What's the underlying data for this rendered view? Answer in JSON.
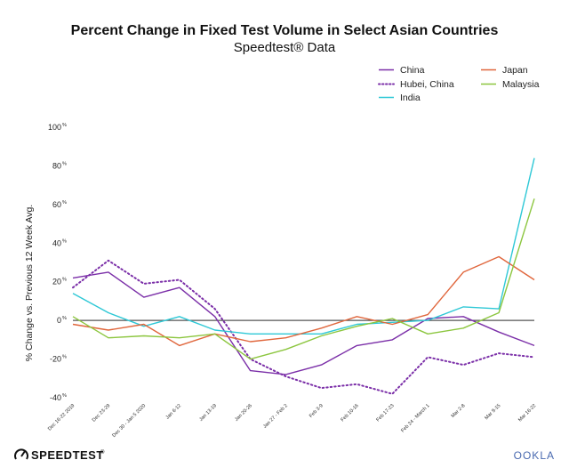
{
  "chart_data": {
    "type": "line",
    "title": "Percent Change in Fixed Test Volume in Select Asian Countries",
    "subtitle": "Speedtest® Data",
    "ylabel": "% Change vs. Previous 12 Week Avg.",
    "xlabel": "",
    "ylim": [
      -40,
      100
    ],
    "yticks": [
      {
        "value": 100,
        "label": "100",
        "unit": "%"
      },
      {
        "value": 80,
        "label": "80",
        "unit": "%"
      },
      {
        "value": 60,
        "label": "60",
        "unit": "%"
      },
      {
        "value": 40,
        "label": "40",
        "unit": "%"
      },
      {
        "value": 20,
        "label": "20",
        "unit": "%"
      },
      {
        "value": 0,
        "label": "0",
        "unit": "%"
      },
      {
        "value": -20,
        "label": "-20",
        "unit": "%"
      },
      {
        "value": -40,
        "label": "-40",
        "unit": "%"
      }
    ],
    "categories": [
      "Dec 16-22 2019",
      "Dec 23-29",
      "Dec 30 - Jan 5 2020",
      "Jan 6-12",
      "Jan 13-19",
      "Jan 20-26",
      "Jan 27 - Feb 2",
      "Feb 3-9",
      "Feb 10-16",
      "Feb 17-23",
      "Feb 24 - March 1",
      "Mar 2-8",
      "Mar 9-15",
      "Mar 16-22"
    ],
    "series": [
      {
        "name": "China",
        "color": "#7b2fa8",
        "dash": false,
        "values": [
          22,
          25,
          12,
          17,
          2,
          -26,
          -28,
          -23,
          -13,
          -10,
          1,
          2,
          -6,
          -13
        ]
      },
      {
        "name": "Hubei, China",
        "color": "#7b2fa8",
        "dash": true,
        "values": [
          17,
          31,
          19,
          21,
          6,
          -20,
          -29,
          -35,
          -33,
          -38,
          -19,
          -23,
          -17,
          -19
        ]
      },
      {
        "name": "India",
        "color": "#2ec8d6",
        "dash": false,
        "values": [
          14,
          4,
          -3,
          2,
          -5,
          -7,
          -7,
          -7,
          -2,
          -1,
          0,
          7,
          6,
          84
        ]
      },
      {
        "name": "Japan",
        "color": "#e0663c",
        "dash": false,
        "values": [
          -2,
          -5,
          -2,
          -13,
          -7,
          -11,
          -9,
          -4,
          2,
          -2,
          3,
          25,
          33,
          21
        ]
      },
      {
        "name": "Malaysia",
        "color": "#8cc63f",
        "dash": false,
        "values": [
          2,
          -9,
          -8,
          -9,
          -7,
          -20,
          -15,
          -8,
          -3,
          1,
          -7,
          -4,
          4,
          63
        ]
      }
    ],
    "legend_position": "top-right",
    "zero_line": true
  },
  "footer": {
    "brand": "SPEEDTEST",
    "brand_mark": "®",
    "partner": "OOKLA"
  },
  "colors": {
    "china": "#7b2fa8",
    "india": "#2ec8d6",
    "japan": "#e0663c",
    "malaysia": "#8cc63f",
    "zero_line": "#555555"
  }
}
